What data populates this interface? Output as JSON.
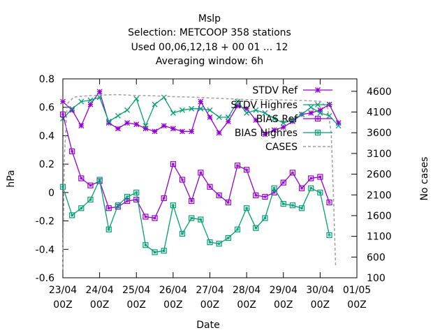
{
  "title_lines": [
    "Mslp",
    "Selection: METCOOP    358 stations",
    "Used  00,06,12,18 + 00 01 ... 12",
    "Averaging window:  6h"
  ],
  "chart_data": {
    "type": "line",
    "xlabel": "Date",
    "ylabel": "hPa",
    "y2label": "No cases",
    "xlim": [
      0,
      8
    ],
    "ylim": [
      -0.6,
      0.8
    ],
    "y2lim": [
      100,
      4900
    ],
    "x_ticks": [
      {
        "x": 0,
        "line1": "23/04",
        "line2": "00Z"
      },
      {
        "x": 1,
        "line1": "24/04",
        "line2": "00Z"
      },
      {
        "x": 2,
        "line1": "25/04",
        "line2": "00Z"
      },
      {
        "x": 3,
        "line1": "26/04",
        "line2": "00Z"
      },
      {
        "x": 4,
        "line1": "27/04",
        "line2": "00Z"
      },
      {
        "x": 5,
        "line1": "28/04",
        "line2": "00Z"
      },
      {
        "x": 6,
        "line1": "29/04",
        "line2": "00Z"
      },
      {
        "x": 7,
        "line1": "30/04",
        "line2": "00Z"
      },
      {
        "x": 8,
        "line1": "01/05",
        "line2": "00Z"
      }
    ],
    "y_ticks": [
      -0.6,
      -0.4,
      -0.2,
      0,
      0.2,
      0.4,
      0.6,
      0.8
    ],
    "y2_ticks": [
      100,
      600,
      1100,
      1600,
      2100,
      2600,
      3100,
      3600,
      4100,
      4600
    ],
    "x_units": "days since 23/04 00Z",
    "x": [
      0.0,
      0.25,
      0.5,
      0.75,
      1.0,
      1.25,
      1.5,
      1.75,
      2.0,
      2.25,
      2.5,
      2.75,
      3.0,
      3.25,
      3.5,
      3.75,
      4.0,
      4.25,
      4.5,
      4.75,
      5.0,
      5.25,
      5.5,
      5.75,
      6.0,
      6.25,
      6.5,
      6.75,
      7.0,
      7.25,
      7.5
    ],
    "series": [
      {
        "name": "STDV Ref",
        "color": "#9400d3",
        "marker": "star",
        "axis": "y",
        "values": [
          0.64,
          0.58,
          0.47,
          0.62,
          0.71,
          0.49,
          0.45,
          0.49,
          0.48,
          0.45,
          0.43,
          0.47,
          0.45,
          0.43,
          0.43,
          0.64,
          0.53,
          0.42,
          0.5,
          0.61,
          0.59,
          0.51,
          0.41,
          0.44,
          0.46,
          0.5,
          0.55,
          0.56,
          0.58,
          0.62,
          0.49
        ]
      },
      {
        "name": "STDV Highres",
        "color": "#009e73",
        "marker": "x",
        "axis": "y",
        "values": [
          0.52,
          0.59,
          0.64,
          0.65,
          0.67,
          0.5,
          0.54,
          0.58,
          0.66,
          0.47,
          0.62,
          0.67,
          0.56,
          0.58,
          0.59,
          0.59,
          0.58,
          0.53,
          0.53,
          0.64,
          0.56,
          0.58,
          0.56,
          0.52,
          0.49,
          0.51,
          0.55,
          0.6,
          0.56,
          0.54,
          0.47
        ]
      },
      {
        "name": "BIAS Ref",
        "color": "#9400d3",
        "marker": "box",
        "axis": "y",
        "values": [
          0.55,
          0.29,
          0.1,
          0.05,
          0.08,
          -0.11,
          -0.1,
          -0.06,
          -0.05,
          -0.17,
          -0.18,
          -0.04,
          0.2,
          0.09,
          -0.06,
          0.14,
          0.04,
          -0.02,
          -0.07,
          0.19,
          0.16,
          -0.02,
          -0.03,
          0.0,
          0.07,
          0.14,
          0.03,
          0.1,
          0.11,
          -0.07,
          0.0
        ]
      },
      {
        "name": "BIAS Highres",
        "color": "#009e73",
        "marker": "box",
        "axis": "y",
        "values": [
          0.04,
          -0.16,
          -0.11,
          -0.05,
          0.09,
          -0.26,
          -0.09,
          -0.03,
          0.0,
          -0.37,
          -0.42,
          -0.41,
          -0.09,
          -0.29,
          -0.18,
          -0.19,
          -0.35,
          -0.36,
          -0.32,
          -0.26,
          -0.11,
          -0.25,
          -0.18,
          0.03,
          -0.08,
          -0.09,
          -0.11,
          0.03,
          0.0,
          -0.3,
          0.0
        ]
      },
      {
        "name": "CASES",
        "color": "#a0a0a0",
        "marker": "none",
        "dash": true,
        "axis": "y2",
        "x": [
          0.0,
          0.04,
          0.12,
          0.3,
          0.5,
          1.0,
          1.5,
          2.0,
          2.5,
          3.0,
          3.5,
          4.0,
          4.5,
          5.0,
          5.5,
          6.0,
          6.5,
          7.0,
          7.2,
          7.3,
          7.35,
          7.42
        ],
        "values": [
          300,
          3000,
          4300,
          4460,
          4480,
          4510,
          4520,
          4500,
          4490,
          4470,
          4460,
          4440,
          4420,
          4400,
          4400,
          4390,
          4380,
          4360,
          4200,
          3600,
          2400,
          400
        ]
      }
    ]
  }
}
